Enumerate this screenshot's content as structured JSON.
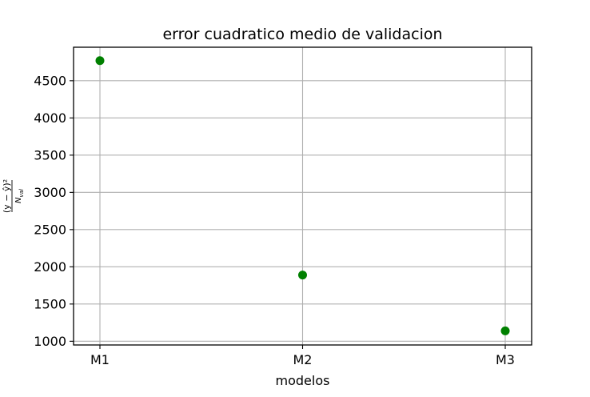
{
  "chart_data": {
    "type": "scatter",
    "title": "error cuadratico medio de validacion",
    "xlabel": "modelos",
    "ylabel": "(y − ŷ)² / N_val",
    "ylabel_parts": {
      "numerator": "(y − ŷ)²",
      "denominator": "N",
      "denominator_sub": "val"
    },
    "categories": [
      "M1",
      "M2",
      "M3"
    ],
    "values": [
      4770,
      1890,
      1140
    ],
    "ylim": [
      950,
      4950
    ],
    "yticks": [
      1000,
      1500,
      2000,
      2500,
      3000,
      3500,
      4000,
      4500
    ],
    "ytick_labels": [
      "1000",
      "1500",
      "2000",
      "2500",
      "3000",
      "3500",
      "4000",
      "4500"
    ],
    "grid": true,
    "marker_color": "#008000"
  }
}
